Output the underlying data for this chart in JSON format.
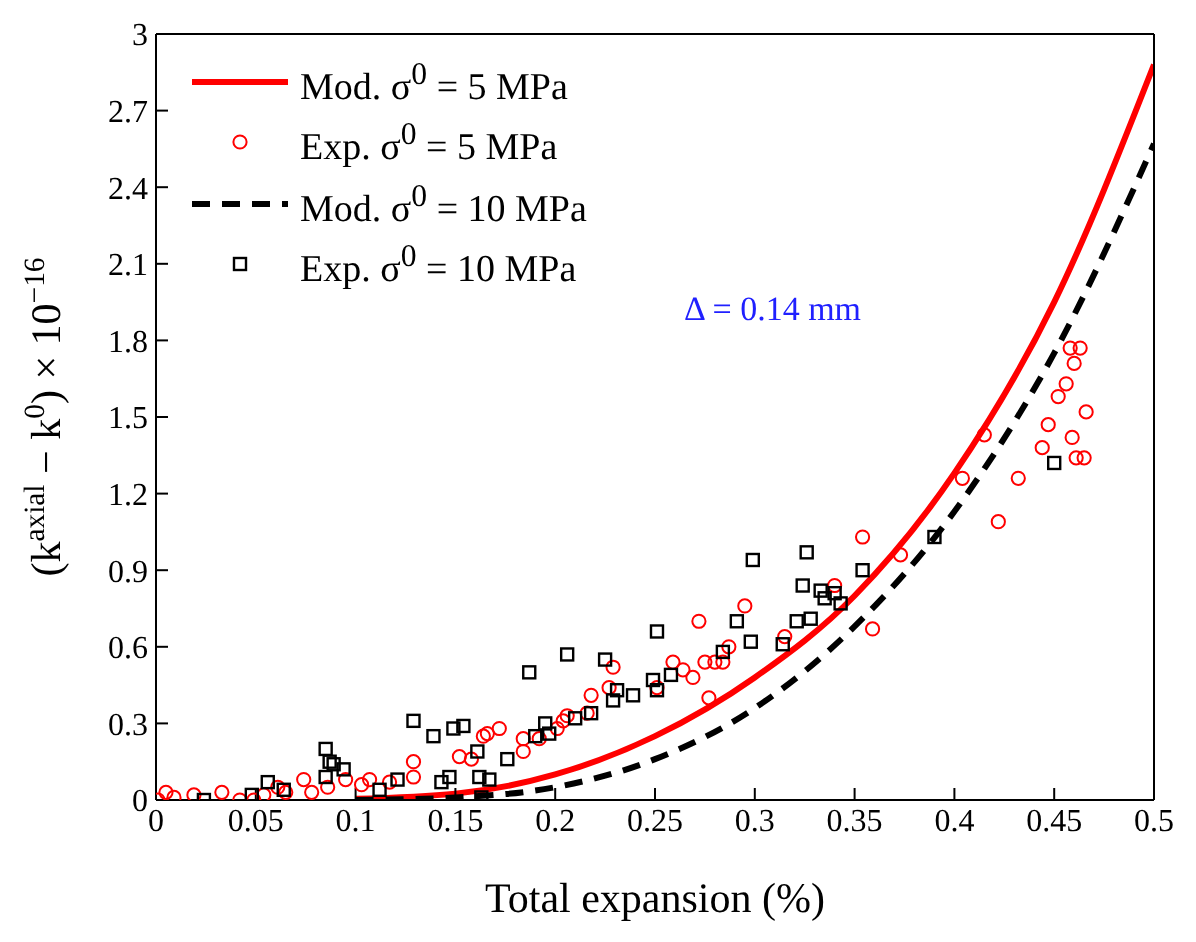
{
  "chart_data": {
    "type": "scatter",
    "xlabel": "Total expansion (%)",
    "ylabel": "(k$^{axial}$ − k$^{0}$) × 10$^{−16}$",
    "xlim": [
      0,
      0.5
    ],
    "xticks": [
      0,
      0.05,
      0.1,
      0.15,
      0.2,
      0.25,
      0.3,
      0.35,
      0.4,
      0.45,
      0.5
    ],
    "ylim": [
      0,
      3
    ],
    "yticks": [
      0,
      0.3,
      0.6,
      0.9,
      1.2,
      1.5,
      1.8,
      2.1,
      2.4,
      2.7,
      3
    ],
    "legend": "top left",
    "annotations": [
      "Δ = 0.14 mm"
    ],
    "series": [
      {
        "name": "Mod. σ$^{0}$ = 5 MPa",
        "type": "line",
        "color": "#ff0000",
        "line_style": "solid",
        "x": [
          0.1,
          0.15,
          0.2,
          0.25,
          0.3,
          0.35,
          0.4,
          0.45,
          0.5
        ],
        "values": [
          0.005,
          0.025,
          0.1,
          0.25,
          0.48,
          0.8,
          1.28,
          1.95,
          2.88
        ]
      },
      {
        "name": "Exp. σ$^{0}$ = 5 MPa",
        "color": "#ff0000",
        "marker": "circle",
        "x": [
          0.001,
          0.005,
          0.009,
          0.019,
          0.033,
          0.042,
          0.049,
          0.054,
          0.061,
          0.065,
          0.074,
          0.078,
          0.086,
          0.095,
          0.103,
          0.107,
          0.117,
          0.129,
          0.129,
          0.152,
          0.158,
          0.164,
          0.166,
          0.172,
          0.184,
          0.184,
          0.192,
          0.201,
          0.204,
          0.206,
          0.216,
          0.218,
          0.227,
          0.229,
          0.251,
          0.259,
          0.264,
          0.269,
          0.272,
          0.275,
          0.28,
          0.284,
          0.287,
          0.295,
          0.277,
          0.315,
          0.34,
          0.354,
          0.359,
          0.373,
          0.404,
          0.415,
          0.422,
          0.432,
          0.444,
          0.447,
          0.452,
          0.456,
          0.459,
          0.46,
          0.458,
          0.463,
          0.461,
          0.465,
          0.466
        ],
        "values": [
          0,
          0.03,
          0.01,
          0.02,
          0.03,
          0,
          0,
          0.02,
          0.05,
          0.03,
          0.08,
          0.03,
          0.05,
          0.08,
          0.06,
          0.08,
          0.07,
          0.15,
          0.09,
          0.17,
          0.16,
          0.25,
          0.26,
          0.28,
          0.24,
          0.19,
          0.24,
          0.28,
          0.31,
          0.33,
          0.34,
          0.41,
          0.44,
          0.52,
          0.44,
          0.54,
          0.51,
          0.48,
          0.7,
          0.54,
          0.54,
          0.54,
          0.6,
          0.76,
          0.4,
          0.64,
          0.84,
          1.03,
          0.67,
          0.96,
          1.26,
          1.43,
          1.09,
          1.26,
          1.38,
          1.47,
          1.58,
          1.63,
          1.42,
          1.71,
          1.77,
          1.77,
          1.34,
          1.34,
          1.52
        ]
      },
      {
        "name": "Mod. σ$^{0}$ = 10 MPa",
        "type": "line",
        "color": "#000000",
        "line_style": "dashed",
        "x": [
          0.1,
          0.15,
          0.2,
          0.25,
          0.3,
          0.35,
          0.4,
          0.45,
          0.5
        ],
        "values": [
          0,
          0.01,
          0.05,
          0.16,
          0.36,
          0.68,
          1.13,
          1.75,
          2.57
        ]
      },
      {
        "name": "Exp. σ$^{0}$ = 10 MPa",
        "color": "#000000",
        "marker": "square",
        "x": [
          0.024,
          0.048,
          0.056,
          0.064,
          0.085,
          0.085,
          0.087,
          0.089,
          0.094,
          0.112,
          0.121,
          0.129,
          0.139,
          0.143,
          0.147,
          0.149,
          0.154,
          0.161,
          0.162,
          0.163,
          0.167,
          0.176,
          0.187,
          0.19,
          0.195,
          0.197,
          0.21,
          0.206,
          0.218,
          0.225,
          0.229,
          0.231,
          0.239,
          0.249,
          0.251,
          0.251,
          0.258,
          0.284,
          0.291,
          0.298,
          0.299,
          0.314,
          0.321,
          0.326,
          0.328,
          0.324,
          0.333,
          0.335,
          0.34,
          0.343,
          0.354,
          0.39,
          0.45
        ],
        "values": [
          0,
          0.02,
          0.07,
          0.04,
          0.2,
          0.09,
          0.15,
          0.14,
          0.12,
          0.04,
          0.08,
          0.31,
          0.25,
          0.07,
          0.09,
          0.28,
          0.29,
          0.19,
          0.09,
          0.01,
          0.08,
          0.16,
          0.5,
          0.25,
          0.3,
          0.26,
          0.32,
          0.57,
          0.34,
          0.55,
          0.39,
          0.43,
          0.41,
          0.47,
          0.43,
          0.66,
          0.49,
          0.58,
          0.7,
          0.62,
          0.94,
          0.61,
          0.7,
          0.97,
          0.71,
          0.84,
          0.82,
          0.79,
          0.81,
          0.77,
          0.9,
          1.03,
          1.32
        ]
      }
    ]
  }
}
